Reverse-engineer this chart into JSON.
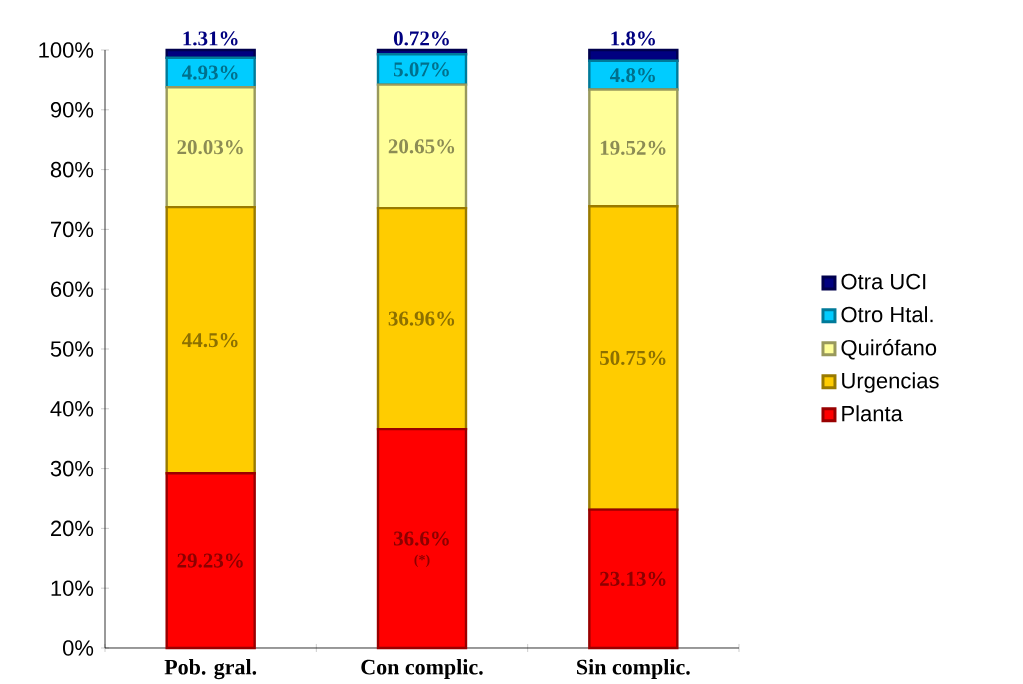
{
  "chart_data": {
    "type": "bar",
    "stacked": true,
    "categories": [
      "Pob. gral.",
      "Con complic.",
      "Sin complic."
    ],
    "series": [
      {
        "name": "Planta",
        "color": "#ff0000",
        "values": [
          29.23,
          36.6,
          23.13
        ],
        "value_labels": [
          "29.23%",
          "36.6%",
          "23.13%"
        ]
      },
      {
        "name": "Urgencias",
        "color": "#ffcc00",
        "values": [
          44.5,
          36.96,
          50.75
        ],
        "value_labels": [
          "44.5%",
          "36.96%",
          "50.75%"
        ]
      },
      {
        "name": "Quirófano",
        "color": "#ffff99",
        "values": [
          20.03,
          20.65,
          19.52
        ],
        "value_labels": [
          "20.03%",
          "20.65%",
          "19.52%"
        ]
      },
      {
        "name": "Otro Htal.",
        "color": "#00ccff",
        "values": [
          4.93,
          5.07,
          4.8
        ],
        "value_labels": [
          "4.93%",
          "5.07%",
          "4.8%"
        ]
      },
      {
        "name": "Otra UCI",
        "color": "#000080",
        "values": [
          1.31,
          0.72,
          1.8
        ],
        "value_labels": [
          "1.31%",
          "0.72%",
          "1.8%"
        ]
      }
    ],
    "ylim": [
      0,
      100
    ],
    "yticks": [
      {
        "value": 0,
        "label": "0%"
      },
      {
        "value": 10,
        "label": "10%"
      },
      {
        "value": 20,
        "label": "20%"
      },
      {
        "value": 30,
        "label": "30%"
      },
      {
        "value": 40,
        "label": "40%"
      },
      {
        "value": 50,
        "label": "50%"
      },
      {
        "value": 60,
        "label": "60%"
      },
      {
        "value": 70,
        "label": "70%"
      },
      {
        "value": 80,
        "label": "80%"
      },
      {
        "value": 90,
        "label": "90%"
      },
      {
        "value": 100,
        "label": "100%"
      }
    ],
    "annotations": [
      "(*)"
    ],
    "grid": false,
    "legend": "right"
  }
}
